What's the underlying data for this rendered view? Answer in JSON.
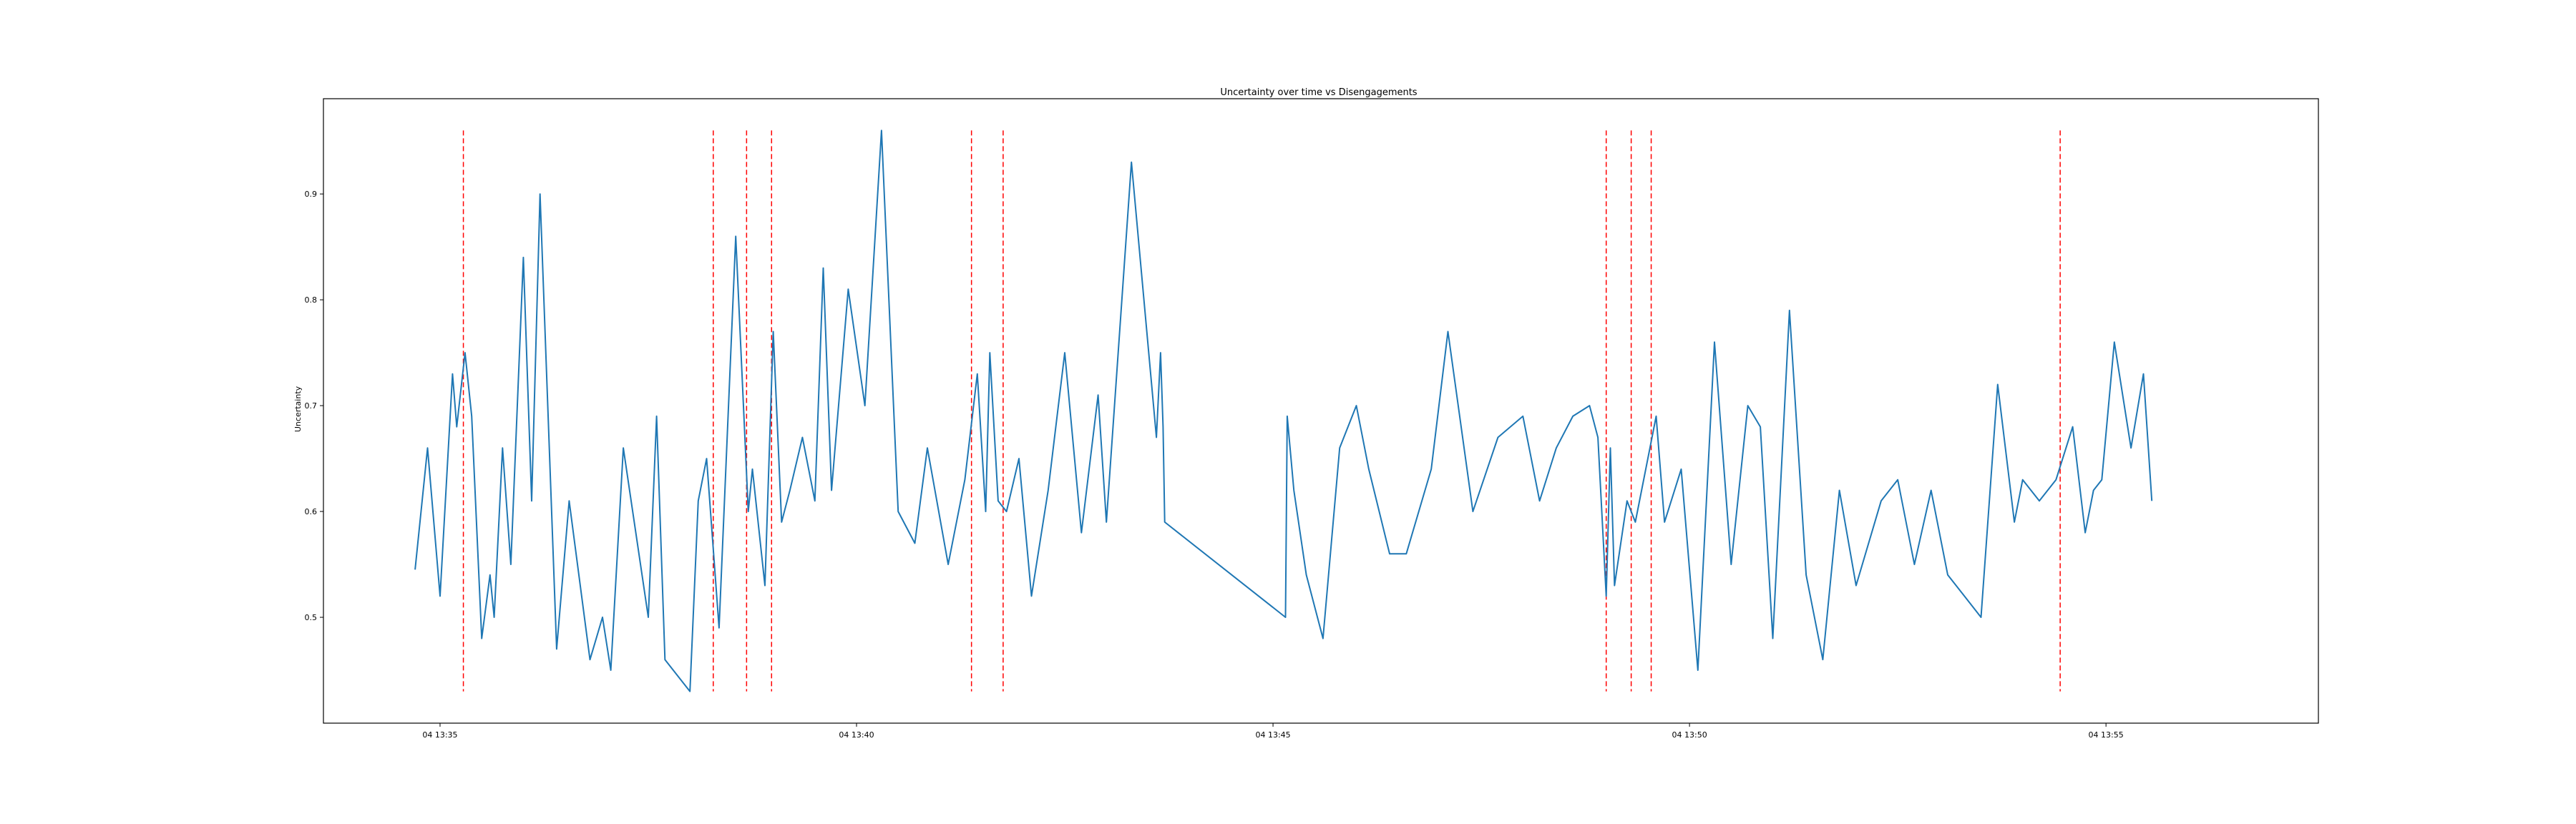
{
  "chart_data": {
    "type": "line",
    "title": "Uncertainty over time vs Disengagements",
    "xlabel": "",
    "ylabel": "Uncertainty",
    "x_unit": "minutes past 04 13:00",
    "xlim": [
      33.6,
      57.55
    ],
    "ylim": [
      0.4,
      0.99
    ],
    "x_ticks": [
      35,
      40,
      45,
      50,
      55
    ],
    "x_tick_labels": [
      "04 13:35",
      "04 13:40",
      "04 13:45",
      "04 13:50",
      "04 13:55"
    ],
    "y_ticks": [
      0.5,
      0.6,
      0.7,
      0.8,
      0.9
    ],
    "y_tick_labels": [
      "0.5",
      "0.6",
      "0.7",
      "0.8",
      "0.9"
    ],
    "grid": false,
    "legend": "none",
    "series": [
      {
        "color": "#1f77b4",
        "x": [
          34.7,
          34.85,
          35.0,
          35.15,
          35.2,
          35.3,
          35.38,
          35.5,
          35.6,
          35.65,
          35.75,
          35.85,
          36.0,
          36.1,
          36.2,
          36.4,
          36.55,
          36.8,
          36.95,
          37.05,
          37.2,
          37.5,
          37.6,
          37.7,
          38.0,
          38.1,
          38.2,
          38.35,
          38.55,
          38.7,
          38.75,
          38.9,
          39.0,
          39.1,
          39.2,
          39.35,
          39.5,
          39.6,
          39.7,
          39.9,
          40.1,
          40.3,
          40.5,
          40.7,
          40.85,
          41.1,
          41.3,
          41.45,
          41.55,
          41.6,
          41.7,
          41.8,
          41.95,
          42.1,
          42.3,
          42.5,
          42.7,
          42.9,
          43.0,
          43.3,
          43.6,
          43.65,
          43.68,
          43.7,
          45.15,
          45.17,
          45.25,
          45.4,
          45.6,
          45.8,
          46.0,
          46.15,
          46.4,
          46.6,
          46.9,
          47.1,
          47.4,
          47.7,
          48.0,
          48.2,
          48.4,
          48.6,
          48.8,
          48.9,
          49.0,
          49.05,
          49.1,
          49.25,
          49.35,
          49.5,
          49.6,
          49.7,
          49.9,
          50.1,
          50.3,
          50.5,
          50.7,
          50.85,
          51.0,
          51.2,
          51.4,
          51.6,
          51.8,
          52.0,
          52.3,
          52.5,
          52.7,
          52.9,
          53.1,
          53.3,
          53.5,
          53.7,
          53.9,
          54.0,
          54.2,
          54.4,
          54.6,
          54.75,
          54.85,
          54.95,
          55.1,
          55.3,
          55.45,
          55.55
        ],
        "y": [
          0.545,
          0.66,
          0.52,
          0.73,
          0.68,
          0.75,
          0.69,
          0.48,
          0.54,
          0.5,
          0.66,
          0.55,
          0.84,
          0.61,
          0.9,
          0.47,
          0.61,
          0.46,
          0.5,
          0.45,
          0.66,
          0.5,
          0.69,
          0.46,
          0.43,
          0.61,
          0.65,
          0.49,
          0.86,
          0.6,
          0.64,
          0.53,
          0.77,
          0.59,
          0.62,
          0.67,
          0.61,
          0.83,
          0.62,
          0.81,
          0.7,
          0.96,
          0.6,
          0.57,
          0.66,
          0.55,
          0.63,
          0.73,
          0.6,
          0.75,
          0.61,
          0.6,
          0.65,
          0.52,
          0.62,
          0.75,
          0.58,
          0.71,
          0.59,
          0.93,
          0.67,
          0.75,
          0.68,
          0.59,
          0.5,
          0.69,
          0.62,
          0.54,
          0.48,
          0.66,
          0.7,
          0.64,
          0.56,
          0.56,
          0.64,
          0.77,
          0.6,
          0.67,
          0.69,
          0.61,
          0.66,
          0.69,
          0.7,
          0.67,
          0.52,
          0.66,
          0.53,
          0.61,
          0.59,
          0.65,
          0.69,
          0.59,
          0.64,
          0.45,
          0.76,
          0.55,
          0.7,
          0.68,
          0.48,
          0.79,
          0.54,
          0.46,
          0.62,
          0.53,
          0.61,
          0.63,
          0.55,
          0.62,
          0.54,
          0.52,
          0.5,
          0.72,
          0.59,
          0.63,
          0.61,
          0.63,
          0.68,
          0.58,
          0.62,
          0.63,
          0.76,
          0.66,
          0.73,
          0.61
        ]
      }
    ],
    "disengagement_lines": {
      "color": "#ff0000",
      "style": "dashed",
      "x": [
        35.28,
        38.28,
        38.68,
        38.98,
        41.38,
        41.76,
        49.0,
        49.3,
        49.54,
        54.45
      ]
    }
  }
}
